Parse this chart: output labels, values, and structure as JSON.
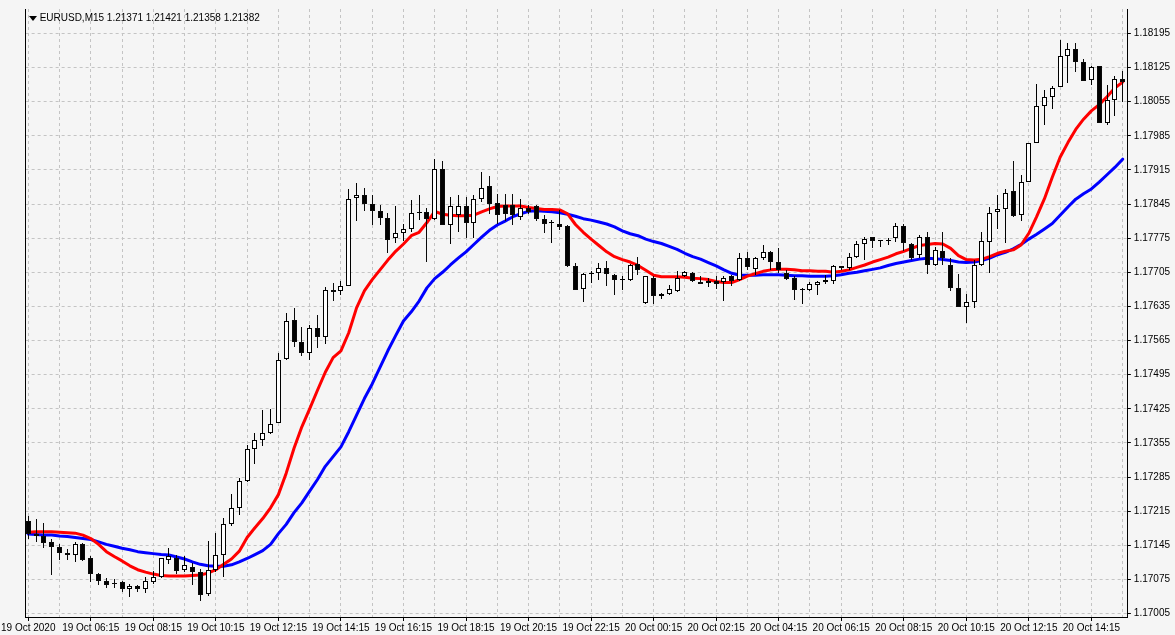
{
  "chart_data": {
    "type": "candlestick",
    "title": "EURUSD,M15 1.21371 1.21421 1.21358 1.21382",
    "x": [
      "2020-10-19T04:15",
      "2020-10-19T04:30",
      "2020-10-19T04:45",
      "2020-10-19T05:00",
      "2020-10-19T05:15",
      "2020-10-19T05:30",
      "2020-10-19T05:45",
      "2020-10-19T06:00",
      "2020-10-19T06:15",
      "2020-10-19T06:30",
      "2020-10-19T06:45",
      "2020-10-19T07:00",
      "2020-10-19T07:15",
      "2020-10-19T07:30",
      "2020-10-19T07:45",
      "2020-10-19T08:00",
      "2020-10-19T08:15",
      "2020-10-19T08:30",
      "2020-10-19T08:45",
      "2020-10-19T09:00",
      "2020-10-19T09:15",
      "2020-10-19T09:30",
      "2020-10-19T09:45",
      "2020-10-19T10:00",
      "2020-10-19T10:15",
      "2020-10-19T10:30",
      "2020-10-19T10:45",
      "2020-10-19T11:00",
      "2020-10-19T11:15",
      "2020-10-19T11:30",
      "2020-10-19T11:45",
      "2020-10-19T12:00",
      "2020-10-19T12:15",
      "2020-10-19T12:30",
      "2020-10-19T12:45",
      "2020-10-19T13:00",
      "2020-10-19T13:15",
      "2020-10-19T13:30",
      "2020-10-19T13:45",
      "2020-10-19T14:00",
      "2020-10-19T14:15",
      "2020-10-19T14:30",
      "2020-10-19T14:45",
      "2020-10-19T15:00",
      "2020-10-19T15:15",
      "2020-10-19T15:30",
      "2020-10-19T15:45",
      "2020-10-19T16:00",
      "2020-10-19T16:15",
      "2020-10-19T16:30",
      "2020-10-19T16:45",
      "2020-10-19T17:00",
      "2020-10-19T17:15",
      "2020-10-19T17:30",
      "2020-10-19T17:45",
      "2020-10-19T18:00",
      "2020-10-19T18:15",
      "2020-10-19T18:30",
      "2020-10-19T18:45",
      "2020-10-19T19:00",
      "2020-10-19T19:15",
      "2020-10-19T19:30",
      "2020-10-19T19:45",
      "2020-10-19T20:00",
      "2020-10-19T20:15",
      "2020-10-19T20:30",
      "2020-10-19T20:45",
      "2020-10-19T21:00",
      "2020-10-19T21:15",
      "2020-10-19T21:30",
      "2020-10-19T21:45",
      "2020-10-19T22:00",
      "2020-10-19T22:15",
      "2020-10-19T22:30",
      "2020-10-19T22:45",
      "2020-10-19T23:00",
      "2020-10-19T23:15",
      "2020-10-19T23:30",
      "2020-10-19T23:45",
      "2020-10-20T00:00",
      "2020-10-20T00:15",
      "2020-10-20T00:30",
      "2020-10-20T00:45",
      "2020-10-20T01:00",
      "2020-10-20T01:15",
      "2020-10-20T01:30",
      "2020-10-20T01:45",
      "2020-10-20T02:00",
      "2020-10-20T02:15",
      "2020-10-20T02:30",
      "2020-10-20T02:45",
      "2020-10-20T03:00",
      "2020-10-20T03:15",
      "2020-10-20T03:30",
      "2020-10-20T03:45",
      "2020-10-20T04:00",
      "2020-10-20T04:15",
      "2020-10-20T04:30",
      "2020-10-20T04:45",
      "2020-10-20T05:00",
      "2020-10-20T05:15",
      "2020-10-20T05:30",
      "2020-10-20T05:45",
      "2020-10-20T06:00",
      "2020-10-20T06:15",
      "2020-10-20T06:30",
      "2020-10-20T06:45",
      "2020-10-20T07:00",
      "2020-10-20T07:15",
      "2020-10-20T07:30",
      "2020-10-20T07:45",
      "2020-10-20T08:00",
      "2020-10-20T08:15",
      "2020-10-20T08:30",
      "2020-10-20T08:45",
      "2020-10-20T09:00",
      "2020-10-20T09:15",
      "2020-10-20T09:30",
      "2020-10-20T09:45",
      "2020-10-20T10:00",
      "2020-10-20T10:15",
      "2020-10-20T10:30",
      "2020-10-20T10:45",
      "2020-10-20T11:00",
      "2020-10-20T11:15",
      "2020-10-20T11:30",
      "2020-10-20T11:45",
      "2020-10-20T12:00",
      "2020-10-20T12:15",
      "2020-10-20T12:30",
      "2020-10-20T12:45",
      "2020-10-20T13:00",
      "2020-10-20T13:15",
      "2020-10-20T13:30",
      "2020-10-20T13:45",
      "2020-10-20T14:00",
      "2020-10-20T14:15",
      "2020-10-20T14:30",
      "2020-10-20T14:45",
      "2020-10-20T15:00",
      "2020-10-20T15:15"
    ],
    "ohlc": [
      [
        1.17195,
        1.17205,
        1.17158,
        1.17168
      ],
      [
        1.17168,
        1.17198,
        1.17152,
        1.17164
      ],
      [
        1.17164,
        1.17191,
        1.1714,
        1.1715
      ],
      [
        1.17152,
        1.17157,
        1.17084,
        1.17142
      ],
      [
        1.17142,
        1.17147,
        1.17115,
        1.17129
      ],
      [
        1.1713,
        1.17137,
        1.17115,
        1.17125
      ],
      [
        1.17126,
        1.17152,
        1.1711,
        1.17147
      ],
      [
        1.17147,
        1.17149,
        1.17113,
        1.17115
      ],
      [
        1.17118,
        1.17123,
        1.17069,
        1.17086
      ],
      [
        1.17086,
        1.17088,
        1.17064,
        1.17072
      ],
      [
        1.17072,
        1.17077,
        1.17058,
        1.17064
      ],
      [
        1.17067,
        1.17075,
        1.17057,
        1.17066
      ],
      [
        1.17069,
        1.17071,
        1.1705,
        1.17056
      ],
      [
        1.17056,
        1.17066,
        1.1704,
        1.17062
      ],
      [
        1.17062,
        1.17064,
        1.17049,
        1.17056
      ],
      [
        1.17056,
        1.17081,
        1.17047,
        1.17071
      ],
      [
        1.17069,
        1.17093,
        1.17065,
        1.17081
      ],
      [
        1.17081,
        1.1712,
        1.17077,
        1.17118
      ],
      [
        1.17115,
        1.1714,
        1.17106,
        1.17123
      ],
      [
        1.17118,
        1.17125,
        1.17087,
        1.17092
      ],
      [
        1.17095,
        1.17123,
        1.1709,
        1.17105
      ],
      [
        1.17101,
        1.17108,
        1.17064,
        1.1709
      ],
      [
        1.17091,
        1.17096,
        1.17031,
        1.17043
      ],
      [
        1.17046,
        1.17154,
        1.17041,
        1.17095
      ],
      [
        1.17095,
        1.17171,
        1.1709,
        1.17125
      ],
      [
        1.17125,
        1.17202,
        1.1708,
        1.17189
      ],
      [
        1.17189,
        1.1725,
        1.17185,
        1.17221
      ],
      [
        1.17221,
        1.17283,
        1.17208,
        1.17276
      ],
      [
        1.17276,
        1.1735,
        1.17274,
        1.17343
      ],
      [
        1.17343,
        1.17376,
        1.17312,
        1.17361
      ],
      [
        1.17361,
        1.17422,
        1.17349,
        1.17376
      ],
      [
        1.17376,
        1.17425,
        1.17373,
        1.17394
      ],
      [
        1.17396,
        1.17539,
        1.17395,
        1.17526
      ],
      [
        1.17528,
        1.17622,
        1.17526,
        1.17606
      ],
      [
        1.17608,
        1.17631,
        1.17552,
        1.17561
      ],
      [
        1.17561,
        1.17592,
        1.17534,
        1.17539
      ],
      [
        1.17539,
        1.17596,
        1.17525,
        1.1759
      ],
      [
        1.1759,
        1.17617,
        1.17549,
        1.17573
      ],
      [
        1.17573,
        1.17674,
        1.17558,
        1.17669
      ],
      [
        1.17669,
        1.17684,
        1.17646,
        1.17664
      ],
      [
        1.17666,
        1.17688,
        1.17659,
        1.17677
      ],
      [
        1.17677,
        1.17875,
        1.17676,
        1.17856
      ],
      [
        1.17858,
        1.17888,
        1.1781,
        1.17864
      ],
      [
        1.17864,
        1.17878,
        1.1783,
        1.17846
      ],
      [
        1.17846,
        1.17864,
        1.17803,
        1.17831
      ],
      [
        1.17831,
        1.17844,
        1.17802,
        1.17817
      ],
      [
        1.17817,
        1.17827,
        1.17744,
        1.17771
      ],
      [
        1.17775,
        1.1784,
        1.17766,
        1.17785
      ],
      [
        1.17785,
        1.17805,
        1.17769,
        1.17793
      ],
      [
        1.17793,
        1.17853,
        1.17788,
        1.17827
      ],
      [
        1.17827,
        1.17863,
        1.17812,
        1.17828
      ],
      [
        1.17828,
        1.17836,
        1.17727,
        1.17814
      ],
      [
        1.17814,
        1.17937,
        1.17812,
        1.17916
      ],
      [
        1.17916,
        1.17934,
        1.17803,
        1.17803
      ],
      [
        1.17803,
        1.17859,
        1.17764,
        1.1784
      ],
      [
        1.17822,
        1.17863,
        1.17788,
        1.1784
      ],
      [
        1.1784,
        1.17859,
        1.17775,
        1.17806
      ],
      [
        1.17806,
        1.17863,
        1.17775,
        1.17855
      ],
      [
        1.17855,
        1.1791,
        1.17849,
        1.17878
      ],
      [
        1.17883,
        1.17902,
        1.17825,
        1.17846
      ],
      [
        1.17848,
        1.17866,
        1.17805,
        1.17822
      ],
      [
        1.17842,
        1.17866,
        1.1781,
        1.17825
      ],
      [
        1.17842,
        1.17866,
        1.17802,
        1.17822
      ],
      [
        1.17819,
        1.17856,
        1.17812,
        1.17836
      ],
      [
        1.17837,
        1.17842,
        1.17825,
        1.17829
      ],
      [
        1.17841,
        1.17842,
        1.1781,
        1.17815
      ],
      [
        1.17814,
        1.17822,
        1.17785,
        1.17805
      ],
      [
        1.17806,
        1.17812,
        1.17766,
        1.17807
      ],
      [
        1.17805,
        1.17832,
        1.17792,
        1.17798
      ],
      [
        1.178,
        1.17802,
        1.17715,
        1.17717
      ],
      [
        1.17718,
        1.17724,
        1.17668,
        1.17669
      ],
      [
        1.17671,
        1.17703,
        1.17644,
        1.17701
      ],
      [
        1.17702,
        1.17708,
        1.17683,
        1.17703
      ],
      [
        1.17703,
        1.17724,
        1.1769,
        1.17714
      ],
      [
        1.17714,
        1.17728,
        1.17676,
        1.17701
      ],
      [
        1.177,
        1.17701,
        1.17659,
        1.1769
      ],
      [
        1.1769,
        1.17698,
        1.17669,
        1.17691
      ],
      [
        1.1769,
        1.17722,
        1.17688,
        1.17719
      ],
      [
        1.17722,
        1.17736,
        1.17699,
        1.1771
      ],
      [
        1.17642,
        1.17698,
        1.1764,
        1.17697
      ],
      [
        1.17693,
        1.17697,
        1.17639,
        1.17656
      ],
      [
        1.17657,
        1.17663,
        1.1765,
        1.1766
      ],
      [
        1.1766,
        1.17678,
        1.17658,
        1.17671
      ],
      [
        1.17667,
        1.17708,
        1.17665,
        1.17694
      ],
      [
        1.17697,
        1.17708,
        1.17695,
        1.17705
      ],
      [
        1.17703,
        1.17705,
        1.17686,
        1.17688
      ],
      [
        1.17686,
        1.17697,
        1.1768,
        1.17681
      ],
      [
        1.17683,
        1.17694,
        1.17674,
        1.17687
      ],
      [
        1.17687,
        1.17698,
        1.17671,
        1.17681
      ],
      [
        1.17685,
        1.17697,
        1.17647,
        1.17694
      ],
      [
        1.17697,
        1.177,
        1.17676,
        1.17688
      ],
      [
        1.1769,
        1.17744,
        1.17688,
        1.17734
      ],
      [
        1.17734,
        1.17747,
        1.1771,
        1.17715
      ],
      [
        1.17712,
        1.17737,
        1.177,
        1.17734
      ],
      [
        1.17735,
        1.17761,
        1.1773,
        1.17747
      ],
      [
        1.17747,
        1.17749,
        1.1771,
        1.17726
      ],
      [
        1.17726,
        1.17754,
        1.17703,
        1.1771
      ],
      [
        1.17703,
        1.1771,
        1.1769,
        1.17692
      ],
      [
        1.17693,
        1.17697,
        1.17649,
        1.17668
      ],
      [
        1.17669,
        1.17673,
        1.17639,
        1.1767
      ],
      [
        1.17668,
        1.17686,
        1.17666,
        1.1768
      ],
      [
        1.17679,
        1.17688,
        1.17659,
        1.17685
      ],
      [
        1.17685,
        1.177,
        1.1768,
        1.1769
      ],
      [
        1.17688,
        1.17719,
        1.1768,
        1.17717
      ],
      [
        1.17717,
        1.17718,
        1.1771,
        1.17714
      ],
      [
        1.17714,
        1.17744,
        1.1771,
        1.17737
      ],
      [
        1.17737,
        1.17769,
        1.17734,
        1.17762
      ],
      [
        1.17762,
        1.17778,
        1.1773,
        1.17774
      ],
      [
        1.17777,
        1.17778,
        1.17754,
        1.17769
      ],
      [
        1.17769,
        1.17771,
        1.17756,
        1.1777
      ],
      [
        1.1777,
        1.17776,
        1.17761,
        1.17771
      ],
      [
        1.17775,
        1.17807,
        1.17768,
        1.178
      ],
      [
        1.178,
        1.17805,
        1.17748,
        1.17765
      ],
      [
        1.17762,
        1.17765,
        1.17731,
        1.17734
      ],
      [
        1.17741,
        1.17781,
        1.17734,
        1.17777
      ],
      [
        1.17777,
        1.17787,
        1.17702,
        1.17719
      ],
      [
        1.17719,
        1.17756,
        1.17717,
        1.17751
      ],
      [
        1.17749,
        1.17787,
        1.1772,
        1.17734
      ],
      [
        1.1772,
        1.17734,
        1.17666,
        1.17672
      ],
      [
        1.17673,
        1.17702,
        1.17634,
        1.17634
      ],
      [
        1.17634,
        1.17661,
        1.176,
        1.17645
      ],
      [
        1.17645,
        1.17731,
        1.17631,
        1.1772
      ],
      [
        1.17719,
        1.17787,
        1.17717,
        1.17769
      ],
      [
        1.17768,
        1.17839,
        1.17704,
        1.17826
      ],
      [
        1.17828,
        1.17863,
        1.17794,
        1.17834
      ],
      [
        1.17834,
        1.17876,
        1.17765,
        1.17868
      ],
      [
        1.17871,
        1.17934,
        1.17819,
        1.17821
      ],
      [
        1.17822,
        1.17905,
        1.1781,
        1.17891
      ],
      [
        1.17891,
        1.17971,
        1.1789,
        1.1797
      ],
      [
        1.17971,
        1.18092,
        1.17971,
        1.18046
      ],
      [
        1.18046,
        1.18078,
        1.18007,
        1.18064
      ],
      [
        1.18064,
        1.18088,
        1.18039,
        1.18083
      ],
      [
        1.18085,
        1.18181,
        1.18085,
        1.18149
      ],
      [
        1.18148,
        1.18176,
        1.18093,
        1.18163
      ],
      [
        1.18163,
        1.18176,
        1.18115,
        1.18137
      ],
      [
        1.18137,
        1.18142,
        1.18097,
        1.18097
      ],
      [
        1.18099,
        1.18129,
        1.1809,
        1.18126
      ],
      [
        1.18129,
        1.18129,
        1.18011,
        1.18011
      ],
      [
        1.18011,
        1.1809,
        1.18007,
        1.18058
      ],
      [
        1.18058,
        1.18108,
        1.18026,
        1.18102
      ],
      [
        1.18102,
        1.18117,
        1.18054,
        1.18095
      ]
    ],
    "series": [
      {
        "type": "line",
        "color": "#ff0000",
        "values": [
          1.17172,
          1.17173,
          1.17173,
          1.17173,
          1.17172,
          1.17171,
          1.1717,
          1.17166,
          1.17159,
          1.17147,
          1.17132,
          1.17122,
          1.17113,
          1.17103,
          1.17095,
          1.1709,
          1.17086,
          1.17083,
          1.17082,
          1.17082,
          1.17082,
          1.17083,
          1.17084,
          1.17088,
          1.17095,
          1.17106,
          1.17117,
          1.17133,
          1.17161,
          1.17181,
          1.172,
          1.17222,
          1.17249,
          1.17293,
          1.17344,
          1.17388,
          1.17425,
          1.17463,
          1.175,
          1.1753,
          1.17544,
          1.17581,
          1.17632,
          1.17667,
          1.1769,
          1.1771,
          1.1773,
          1.17748,
          1.17763,
          1.1778,
          1.17787,
          1.17807,
          1.1783,
          1.17824,
          1.17822,
          1.17821,
          1.17821,
          1.17822,
          1.17829,
          1.17835,
          1.1784,
          1.17841,
          1.17841,
          1.17841,
          1.17838,
          1.17836,
          1.17834,
          1.17834,
          1.17833,
          1.17825,
          1.17803,
          1.17787,
          1.17773,
          1.1776,
          1.17747,
          1.17737,
          1.17731,
          1.17726,
          1.17719,
          1.17709,
          1.17699,
          1.17696,
          1.17696,
          1.17696,
          1.17695,
          1.17693,
          1.17692,
          1.1769,
          1.17686,
          1.17684,
          1.17684,
          1.1769,
          1.17697,
          1.17702,
          1.17707,
          1.1771,
          1.17711,
          1.17711,
          1.1771,
          1.17708,
          1.17708,
          1.17707,
          1.17707,
          1.17705,
          1.17707,
          1.1771,
          1.17715,
          1.1772,
          1.17726,
          1.17731,
          1.17736,
          1.17743,
          1.17748,
          1.17754,
          1.1776,
          1.17762,
          1.17764,
          1.17763,
          1.17754,
          1.17739,
          1.17731,
          1.1773,
          1.17732,
          1.17737,
          1.17744,
          1.17748,
          1.17751,
          1.17761,
          1.17785,
          1.17819,
          1.17856,
          1.179,
          1.17941,
          1.17971,
          1.17998,
          1.18019,
          1.18036,
          1.18049,
          1.18065,
          1.18083,
          1.18095
        ]
      },
      {
        "type": "line",
        "color": "#0000ff",
        "values": [
          1.17168,
          1.17167,
          1.17166,
          1.17166,
          1.17164,
          1.17163,
          1.17161,
          1.17159,
          1.17157,
          1.17152,
          1.17147,
          1.17143,
          1.17139,
          1.17136,
          1.17132,
          1.1713,
          1.17128,
          1.17126,
          1.17125,
          1.17121,
          1.17117,
          1.17111,
          1.17106,
          1.17103,
          1.17102,
          1.17102,
          1.17105,
          1.17111,
          1.17118,
          1.17126,
          1.17134,
          1.17147,
          1.17169,
          1.17188,
          1.17212,
          1.17232,
          1.17256,
          1.1728,
          1.17307,
          1.17327,
          1.17347,
          1.17378,
          1.17412,
          1.17446,
          1.17476,
          1.1751,
          1.17544,
          1.17575,
          1.17605,
          1.17624,
          1.17646,
          1.17673,
          1.17692,
          1.17705,
          1.1772,
          1.17734,
          1.17747,
          1.17762,
          1.17777,
          1.17791,
          1.17802,
          1.1781,
          1.17819,
          1.17825,
          1.1783,
          1.17831,
          1.1783,
          1.17829,
          1.17827,
          1.17824,
          1.1782,
          1.17815,
          1.17812,
          1.17808,
          1.17804,
          1.17798,
          1.1779,
          1.17784,
          1.1778,
          1.17773,
          1.17768,
          1.17764,
          1.17758,
          1.17752,
          1.17744,
          1.17737,
          1.17732,
          1.17725,
          1.17718,
          1.1771,
          1.17703,
          1.17699,
          1.17699,
          1.17699,
          1.177,
          1.177,
          1.177,
          1.17699,
          1.17698,
          1.17698,
          1.17697,
          1.17697,
          1.17697,
          1.17698,
          1.177,
          1.17703,
          1.17705,
          1.17708,
          1.17711,
          1.17714,
          1.17719,
          1.17723,
          1.17726,
          1.17729,
          1.17732,
          1.17734,
          1.17733,
          1.17731,
          1.17729,
          1.17726,
          1.17725,
          1.17726,
          1.17729,
          1.17734,
          1.17741,
          1.17746,
          1.17753,
          1.17762,
          1.17773,
          1.17783,
          1.17794,
          1.17805,
          1.17822,
          1.17839,
          1.17855,
          1.17866,
          1.17876,
          1.1789,
          1.17905,
          1.1792,
          1.17937
        ]
      }
    ],
    "xlim": [
      "2020-10-19T04:10",
      "2020-10-20T15:25"
    ],
    "xticks": [
      {
        "value": "2020-10-19T04:15",
        "label": "19 Oct 2020"
      },
      {
        "value": "2020-10-19T05:15",
        "label": null
      },
      {
        "value": "2020-10-19T06:15",
        "label": "19 Oct 06:15"
      },
      {
        "value": "2020-10-19T07:15",
        "label": null
      },
      {
        "value": "2020-10-19T08:15",
        "label": "19 Oct 08:15"
      },
      {
        "value": "2020-10-19T09:15",
        "label": null
      },
      {
        "value": "2020-10-19T10:15",
        "label": "19 Oct 10:15"
      },
      {
        "value": "2020-10-19T11:15",
        "label": null
      },
      {
        "value": "2020-10-19T12:15",
        "label": "19 Oct 12:15"
      },
      {
        "value": "2020-10-19T13:15",
        "label": null
      },
      {
        "value": "2020-10-19T14:15",
        "label": "19 Oct 14:15"
      },
      {
        "value": "2020-10-19T15:15",
        "label": null
      },
      {
        "value": "2020-10-19T16:15",
        "label": "19 Oct 16:15"
      },
      {
        "value": "2020-10-19T17:15",
        "label": null
      },
      {
        "value": "2020-10-19T18:15",
        "label": "19 Oct 18:15"
      },
      {
        "value": "2020-10-19T19:15",
        "label": null
      },
      {
        "value": "2020-10-19T20:15",
        "label": "19 Oct 20:15"
      },
      {
        "value": "2020-10-19T21:15",
        "label": null
      },
      {
        "value": "2020-10-19T22:15",
        "label": "19 Oct 22:15"
      },
      {
        "value": "2020-10-19T23:15",
        "label": null
      },
      {
        "value": "2020-10-20T00:15",
        "label": "20 Oct 00:15"
      },
      {
        "value": "2020-10-20T01:15",
        "label": null
      },
      {
        "value": "2020-10-20T02:15",
        "label": "20 Oct 02:15"
      },
      {
        "value": "2020-10-20T03:15",
        "label": null
      },
      {
        "value": "2020-10-20T04:15",
        "label": "20 Oct 04:15"
      },
      {
        "value": "2020-10-20T05:15",
        "label": null
      },
      {
        "value": "2020-10-20T06:15",
        "label": "20 Oct 06:15"
      },
      {
        "value": "2020-10-20T07:15",
        "label": null
      },
      {
        "value": "2020-10-20T08:15",
        "label": "20 Oct 08:15"
      },
      {
        "value": "2020-10-20T09:15",
        "label": null
      },
      {
        "value": "2020-10-20T10:15",
        "label": "20 Oct 10:15"
      },
      {
        "value": "2020-10-20T11:15",
        "label": null
      },
      {
        "value": "2020-10-20T12:15",
        "label": "20 Oct 12:15"
      },
      {
        "value": "2020-10-20T13:15",
        "label": null
      },
      {
        "value": "2020-10-20T14:15",
        "label": "20 Oct 14:15"
      },
      {
        "value": "2020-10-20T15:15",
        "label": null
      }
    ],
    "ylim": [
      1.16998,
      1.18245
    ],
    "yticks": [
      1.17005,
      1.17075,
      1.17145,
      1.17215,
      1.17285,
      1.17355,
      1.17425,
      1.17495,
      1.17565,
      1.17635,
      1.17705,
      1.17775,
      1.17845,
      1.17915,
      1.17985,
      1.18055,
      1.18125,
      1.18195
    ],
    "grid": true
  }
}
